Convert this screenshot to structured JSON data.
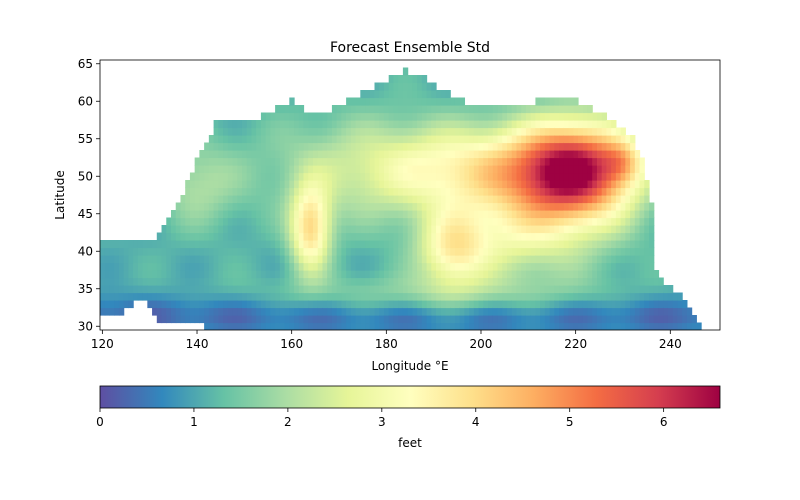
{
  "chart_data": {
    "type": "heatmap",
    "title": "Forecast Ensemble Std",
    "xlabel": "Longitude °E",
    "ylabel": "Latitude",
    "xlim": [
      119.5,
      250.5
    ],
    "ylim": [
      29.5,
      65.5
    ],
    "x_ticks": [
      120,
      140,
      160,
      180,
      200,
      220,
      240
    ],
    "y_ticks": [
      30,
      35,
      40,
      45,
      50,
      55,
      60,
      65
    ],
    "grid": false,
    "colormap": "Spectral_r",
    "colormap_stops": [
      "#5e4fa2",
      "#3288bd",
      "#66c2a5",
      "#abdda4",
      "#e6f598",
      "#ffffbf",
      "#fee08b",
      "#fdae61",
      "#f46d43",
      "#d53e4f",
      "#9e0142"
    ],
    "colorbar": {
      "label": "feet",
      "range": [
        0,
        6.6
      ],
      "ticks": [
        0,
        1,
        2,
        3,
        4,
        5,
        6
      ],
      "orientation": "horizontal"
    },
    "grid_resolution_deg": 1,
    "blobs": [
      {
        "lon": 220,
        "lat": 51,
        "sx": 9,
        "sy": 4.5,
        "amp": 4.4
      },
      {
        "lon": 218,
        "lat": 47,
        "sx": 10,
        "sy": 6,
        "amp": 1.0
      },
      {
        "lon": 230,
        "lat": 52,
        "sx": 3,
        "sy": 2,
        "amp": 1.2
      },
      {
        "lon": 200,
        "lat": 51,
        "sx": 14,
        "sy": 4,
        "amp": 2.0
      },
      {
        "lon": 164,
        "lat": 43,
        "sx": 3,
        "sy": 4,
        "amp": 2.8
      },
      {
        "lon": 194,
        "lat": 40,
        "sx": 5,
        "sy": 3.5,
        "amp": 2.0
      },
      {
        "lon": 205,
        "lat": 42,
        "sx": 10,
        "sy": 4,
        "amp": 1.3
      },
      {
        "lon": 176,
        "lat": 51,
        "sx": 16,
        "sy": 5,
        "amp": 1.1
      },
      {
        "lon": 190,
        "lat": 34,
        "sx": 28,
        "sy": 2,
        "amp": 0.8
      },
      {
        "lon": 140,
        "lat": 49,
        "sx": 6,
        "sy": 4,
        "amp": 0.9
      }
    ],
    "trough_band": {
      "lat": 31.5,
      "width": 2,
      "depth": 0.8
    },
    "baseline": 1.1,
    "land_mask": {
      "north_coast": [
        [
          119,
          41
        ],
        [
          130,
          41
        ],
        [
          136,
          46
        ],
        [
          140,
          52
        ],
        [
          144,
          57
        ],
        [
          150,
          57
        ],
        [
          160,
          60
        ],
        [
          165,
          58
        ],
        [
          172,
          60
        ],
        [
          178,
          62
        ],
        [
          184,
          64
        ],
        [
          188,
          63
        ],
        [
          196,
          60
        ],
        [
          205,
          59
        ],
        [
          212,
          60
        ],
        [
          220,
          60
        ],
        [
          226,
          58
        ],
        [
          232,
          55
        ],
        [
          234,
          52
        ],
        [
          236,
          46
        ],
        [
          236,
          40
        ],
        [
          237,
          37
        ],
        [
          242,
          34
        ],
        [
          246,
          30
        ],
        [
          251,
          28
        ]
      ],
      "south_coast": [
        [
          119,
          31
        ],
        [
          124,
          32
        ],
        [
          128,
          34
        ],
        [
          132,
          31
        ],
        [
          140,
          31
        ],
        [
          142,
          30
        ],
        [
          251,
          29
        ]
      ]
    }
  }
}
